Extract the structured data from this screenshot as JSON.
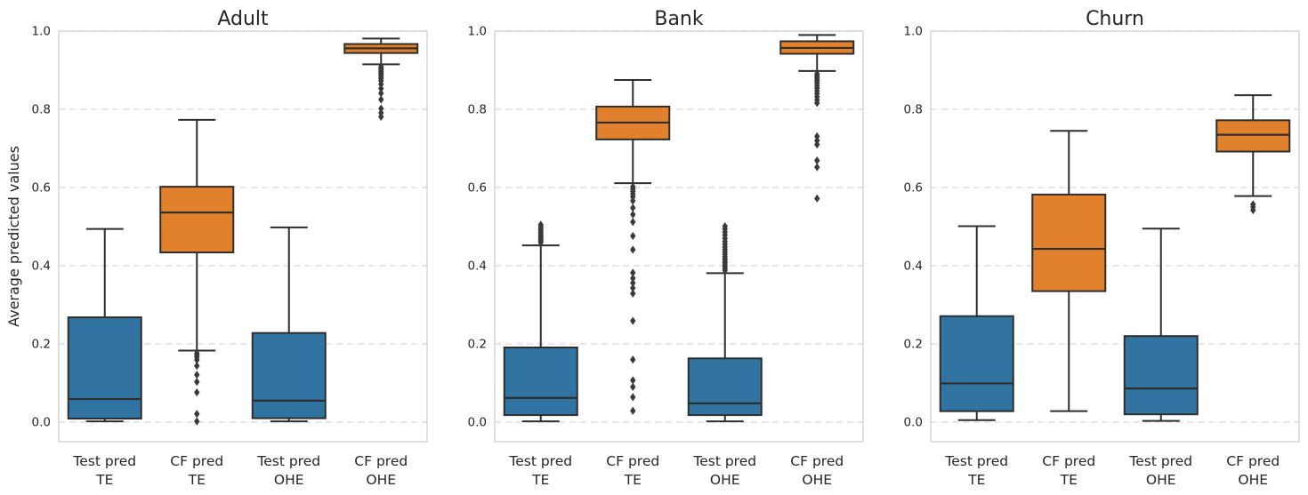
{
  "figure": {
    "ylabel": "Average predicted values"
  },
  "theme": {
    "blue": "#3274a1",
    "orange": "#e1812c",
    "edge": "#2e2e2e",
    "flier": "#3a3a3a",
    "grid": "#d8d8d8",
    "spine": "#cccccc",
    "text": "#262626",
    "background": "#ffffff"
  },
  "chart_data": [
    {
      "type": "box",
      "title": "Adult",
      "ylabel": "Average predicted values",
      "ylim": [
        -0.05,
        1.0
      ],
      "yticks": [
        "0.0",
        "0.2",
        "0.4",
        "0.6",
        "0.8",
        "1.0"
      ],
      "ytick_values": [
        0.0,
        0.2,
        0.4,
        0.6,
        0.8,
        1.0
      ],
      "grid": "dashed-horizontal",
      "categories": [
        "Test pred\nTE",
        "CF pred\nTE",
        "Test pred\nOHE",
        "CF pred\nOHE"
      ],
      "boxes": [
        {
          "category": "Test pred\nTE",
          "color_key": "blue",
          "whisker_low": 0.002,
          "q1": 0.009,
          "median": 0.059,
          "q3": 0.268,
          "whisker_high": 0.494,
          "outliers": []
        },
        {
          "category": "CF pred\nTE",
          "color_key": "orange",
          "whisker_low": 0.183,
          "q1": 0.434,
          "median": 0.536,
          "q3": 0.602,
          "whisker_high": 0.773,
          "outliers": [
            0.176,
            0.171,
            0.166,
            0.159,
            0.144,
            0.121,
            0.103,
            0.076,
            0.021,
            0.002
          ]
        },
        {
          "category": "Test pred\nOHE",
          "color_key": "blue",
          "whisker_low": 0.002,
          "q1": 0.01,
          "median": 0.055,
          "q3": 0.228,
          "whisker_high": 0.498,
          "outliers": []
        },
        {
          "category": "CF pred\nOHE",
          "color_key": "orange",
          "whisker_low": 0.915,
          "q1": 0.944,
          "median": 0.956,
          "q3": 0.967,
          "whisker_high": 0.981,
          "outliers": [
            0.909,
            0.905,
            0.901,
            0.897,
            0.893,
            0.889,
            0.884,
            0.879,
            0.873,
            0.864,
            0.853,
            0.841,
            0.825,
            0.802,
            0.791,
            0.781
          ]
        }
      ]
    },
    {
      "type": "box",
      "title": "Bank",
      "ylabel": "",
      "ylim": [
        -0.05,
        1.0
      ],
      "yticks": [
        "0.0",
        "0.2",
        "0.4",
        "0.6",
        "0.8",
        "1.0"
      ],
      "ytick_values": [
        0.0,
        0.2,
        0.4,
        0.6,
        0.8,
        1.0
      ],
      "grid": "dashed-horizontal",
      "categories": [
        "Test pred\nTE",
        "CF pred\nTE",
        "Test pred\nOHE",
        "CF pred\nOHE"
      ],
      "boxes": [
        {
          "category": "Test pred\nTE",
          "color_key": "blue",
          "whisker_low": 0.002,
          "q1": 0.018,
          "median": 0.062,
          "q3": 0.191,
          "whisker_high": 0.452,
          "outliers": [
            0.459,
            0.463,
            0.467,
            0.471,
            0.475,
            0.479,
            0.483,
            0.487,
            0.491,
            0.495,
            0.5,
            0.505
          ]
        },
        {
          "category": "CF pred\nTE",
          "color_key": "orange",
          "whisker_low": 0.611,
          "q1": 0.723,
          "median": 0.766,
          "q3": 0.807,
          "whisker_high": 0.875,
          "outliers": [
            0.602,
            0.596,
            0.59,
            0.583,
            0.576,
            0.566,
            0.548,
            0.531,
            0.512,
            0.476,
            0.441,
            0.382,
            0.368,
            0.356,
            0.343,
            0.329,
            0.259,
            0.16,
            0.107,
            0.09,
            0.064,
            0.029
          ]
        },
        {
          "category": "Test pred\nOHE",
          "color_key": "blue",
          "whisker_low": 0.002,
          "q1": 0.018,
          "median": 0.048,
          "q3": 0.163,
          "whisker_high": 0.381,
          "outliers": [
            0.388,
            0.393,
            0.398,
            0.403,
            0.408,
            0.413,
            0.418,
            0.424,
            0.43,
            0.436,
            0.442,
            0.448,
            0.455,
            0.462,
            0.47,
            0.478,
            0.486,
            0.494,
            0.501
          ]
        },
        {
          "category": "CF pred\nOHE",
          "color_key": "orange",
          "whisker_low": 0.898,
          "q1": 0.942,
          "median": 0.957,
          "q3": 0.974,
          "whisker_high": 0.99,
          "outliers": [
            0.891,
            0.886,
            0.881,
            0.876,
            0.871,
            0.866,
            0.86,
            0.854,
            0.847,
            0.84,
            0.832,
            0.824,
            0.816,
            0.731,
            0.72,
            0.71,
            0.669,
            0.652,
            0.572
          ]
        }
      ]
    },
    {
      "type": "box",
      "title": "Churn",
      "ylabel": "",
      "ylim": [
        -0.05,
        1.0
      ],
      "yticks": [
        "0.0",
        "0.2",
        "0.4",
        "0.6",
        "0.8",
        "1.0"
      ],
      "ytick_values": [
        0.0,
        0.2,
        0.4,
        0.6,
        0.8,
        1.0
      ],
      "grid": "dashed-horizontal",
      "categories": [
        "Test pred\nTE",
        "CF pred\nTE",
        "Test pred\nOHE",
        "CF pred\nOHE"
      ],
      "boxes": [
        {
          "category": "Test pred\nTE",
          "color_key": "blue",
          "whisker_low": 0.005,
          "q1": 0.028,
          "median": 0.099,
          "q3": 0.271,
          "whisker_high": 0.501,
          "outliers": []
        },
        {
          "category": "CF pred\nTE",
          "color_key": "orange",
          "whisker_low": 0.028,
          "q1": 0.335,
          "median": 0.443,
          "q3": 0.582,
          "whisker_high": 0.745,
          "outliers": []
        },
        {
          "category": "Test pred\nOHE",
          "color_key": "blue",
          "whisker_low": 0.003,
          "q1": 0.02,
          "median": 0.086,
          "q3": 0.22,
          "whisker_high": 0.495,
          "outliers": []
        },
        {
          "category": "CF pred\nOHE",
          "color_key": "orange",
          "whisker_low": 0.578,
          "q1": 0.692,
          "median": 0.735,
          "q3": 0.772,
          "whisker_high": 0.836,
          "outliers": [
            0.557,
            0.55,
            0.542
          ]
        }
      ]
    }
  ]
}
